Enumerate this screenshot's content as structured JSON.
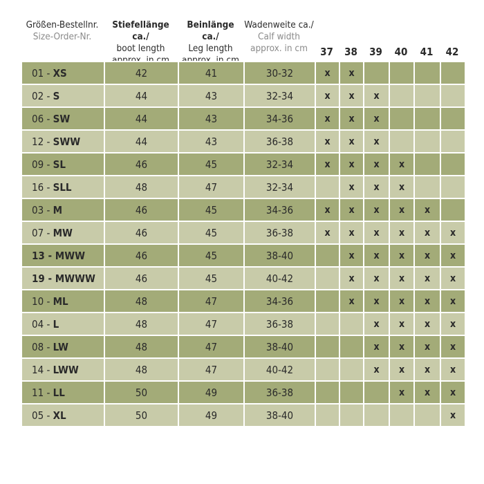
{
  "header": {
    "columns": [
      {
        "lines": [
          "Größen-Bestellnr.",
          "Size-Order-Nr."
        ]
      },
      {
        "lines": [
          "Stiefellänge ca./",
          "boot length",
          "approx. in cm"
        ]
      },
      {
        "lines": [
          "Beinlänge ca./",
          "Leg length",
          "approx. in cm"
        ]
      },
      {
        "lines": [
          "Wadenweite ca./",
          "Calf width",
          "approx. in cm"
        ]
      }
    ],
    "sizes": [
      37,
      38,
      39,
      40,
      41,
      42
    ]
  },
  "rows": [
    {
      "order": [
        "01 - ",
        "XS"
      ],
      "boot": 42,
      "leg": 41,
      "calf": "30-32",
      "fits": [
        "x",
        "x",
        null,
        null,
        null,
        null
      ]
    },
    {
      "order": [
        "02 - ",
        "S"
      ],
      "boot": 44,
      "leg": 43,
      "calf": "32-34",
      "fits": [
        "x",
        "x",
        "x",
        null,
        null,
        null
      ]
    },
    {
      "order": [
        "06 - ",
        "SW"
      ],
      "boot": 44,
      "leg": 43,
      "calf": "34-36",
      "fits": [
        "x",
        "x",
        "x",
        null,
        null,
        null
      ]
    },
    {
      "order": [
        "12 - ",
        "SWW"
      ],
      "boot": 44,
      "leg": 43,
      "calf": "36-38",
      "fits": [
        "x",
        "x",
        "x",
        null,
        null,
        null
      ]
    },
    {
      "order": [
        "09 - ",
        "SL"
      ],
      "boot": 46,
      "leg": 45,
      "calf": "32-34",
      "fits": [
        "x",
        "x",
        "x",
        "x",
        null,
        null
      ]
    },
    {
      "order": [
        "16 - ",
        "SLL"
      ],
      "boot": 48,
      "leg": 47,
      "calf": "32-34",
      "fits": [
        null,
        "x",
        "x",
        "x",
        null,
        null
      ]
    },
    {
      "order": [
        "03 - ",
        "M"
      ],
      "boot": 46,
      "leg": 45,
      "calf": "34-36",
      "fits": [
        "x",
        "x",
        "x",
        "x",
        "x",
        null
      ]
    },
    {
      "order": [
        "07 - ",
        "MW"
      ],
      "boot": 46,
      "leg": 45,
      "calf": "36-38",
      "fits": [
        "x",
        "x",
        "x",
        "x",
        "x",
        "x"
      ]
    },
    {
      "order": [
        "13 - ",
        "MWW"
      ],
      "bold": true,
      "boot": 46,
      "leg": 45,
      "calf": "38-40",
      "fits": [
        null,
        "x",
        "x",
        "x",
        "x",
        "x"
      ]
    },
    {
      "order": [
        "19 - ",
        "MWWW"
      ],
      "bold": true,
      "boot": 46,
      "leg": 45,
      "calf": "40-42",
      "fits": [
        null,
        "x",
        "x",
        "x",
        "x",
        "x"
      ]
    },
    {
      "order": [
        "10 - ",
        "ML"
      ],
      "boot": 48,
      "leg": 47,
      "calf": "34-36",
      "fits": [
        null,
        "x",
        "x",
        "x",
        "x",
        "x"
      ]
    },
    {
      "order": [
        "04 - ",
        "L"
      ],
      "boot": 48,
      "leg": 47,
      "calf": "36-38",
      "fits": [
        null,
        null,
        "x",
        "x",
        "x",
        "x"
      ]
    },
    {
      "order": [
        "08 - ",
        "LW"
      ],
      "boot": 48,
      "leg": 47,
      "calf": "38-40",
      "fits": [
        null,
        null,
        "x",
        "x",
        "x",
        "x"
      ]
    },
    {
      "order": [
        "14 - ",
        "LWW"
      ],
      "boot": 48,
      "leg": 47,
      "calf": "40-42",
      "fits": [
        null,
        null,
        "x",
        "x",
        "x",
        "x"
      ]
    },
    {
      "order": [
        "11 - ",
        "LL"
      ],
      "boot": 50,
      "leg": 49,
      "calf": "36-38",
      "fits": [
        null,
        null,
        null,
        "x",
        "x",
        "x"
      ]
    },
    {
      "order": [
        "05 - ",
        "XL"
      ],
      "boot": 50,
      "leg": 49,
      "calf": "38-40",
      "fits": [
        null,
        null,
        null,
        null,
        null,
        "x"
      ]
    }
  ]
}
